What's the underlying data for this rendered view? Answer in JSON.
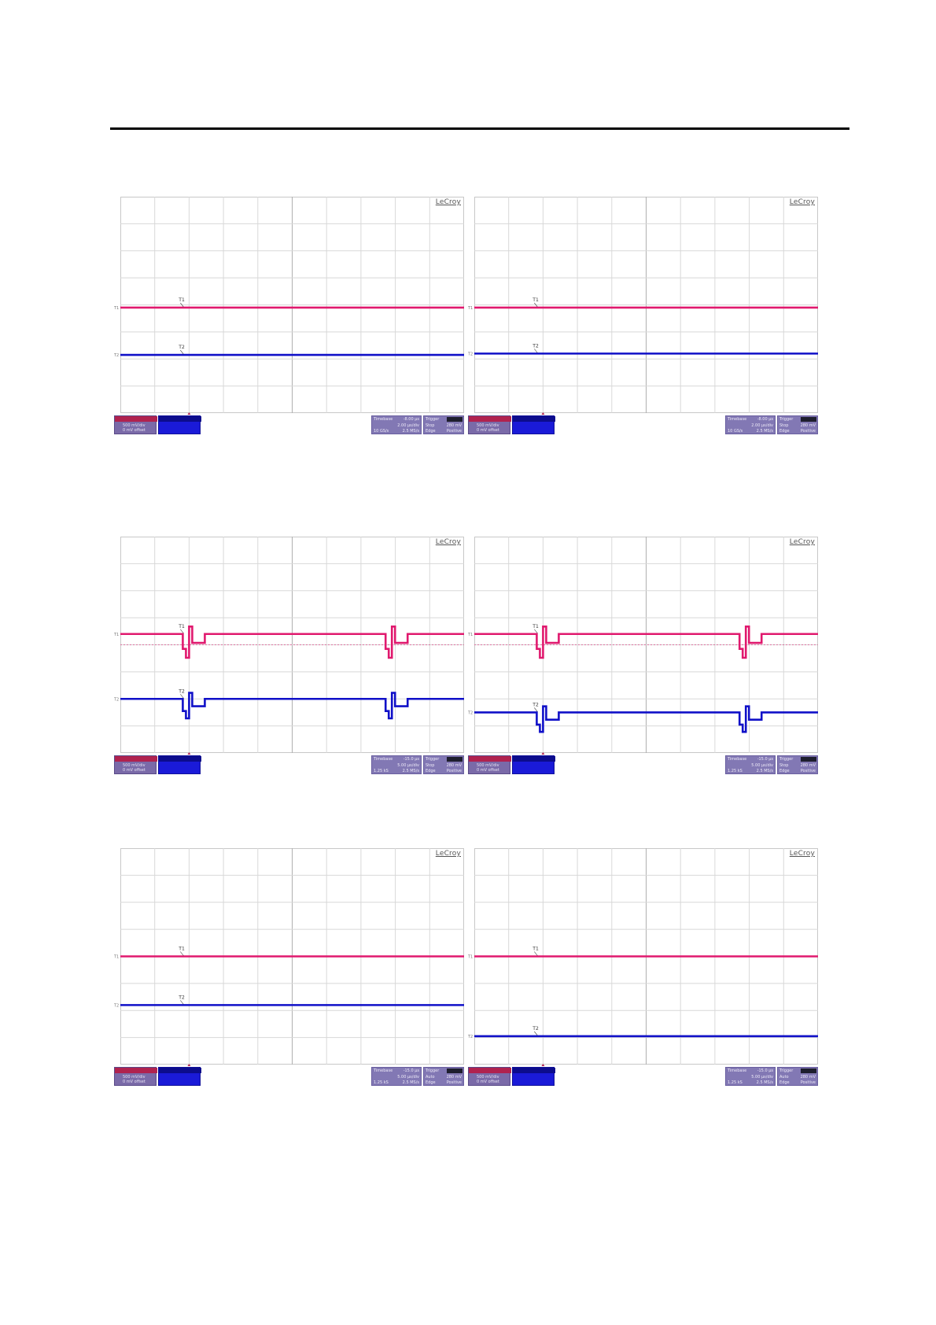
{
  "brand": "LeCroy",
  "colors": {
    "trace1": "#e0196e",
    "trace2": "#1010c8",
    "grid": "#d8d8d8",
    "grid_center": "#b0b0b0"
  },
  "marker_labels": {
    "t1": "T1",
    "t2": "T2"
  },
  "chart_data": [
    {
      "type": "line",
      "grid": {
        "x_divisions": 10,
        "y_divisions": 8
      },
      "series": [
        {
          "channel": "T1",
          "color": "#e0196e",
          "level_div": 3.9,
          "pulses": []
        },
        {
          "channel": "T2",
          "color": "#1010c8",
          "level_div": 2.15,
          "pulses": []
        }
      ],
      "ch1_lines": [
        "500 mV/div",
        "0 mV offset"
      ],
      "timebase": {
        "label": "Timebase",
        "value": "-8.00 µs",
        "per_div": "2.00 µs/div",
        "a": "10 GS/s",
        "b": "2.5 MS/s"
      },
      "trigger": {
        "label": "Trigger",
        "mode": "Stop",
        "level": "280 mV",
        "type": "Edge",
        "slope": "Positive"
      }
    },
    {
      "type": "line",
      "grid": {
        "x_divisions": 10,
        "y_divisions": 8
      },
      "series": [
        {
          "channel": "T1",
          "color": "#e0196e",
          "level_div": 3.9,
          "pulses": []
        },
        {
          "channel": "T2",
          "color": "#1010c8",
          "level_div": 2.2,
          "pulses": []
        }
      ],
      "ch1_lines": [
        "500 mV/div",
        "0 mV offset"
      ],
      "timebase": {
        "label": "Timebase",
        "value": "-8.00 µs",
        "per_div": "2.00 µs/div",
        "a": "10 GS/s",
        "b": "2.5 MS/s"
      },
      "trigger": {
        "label": "Trigger",
        "mode": "Stop",
        "level": "280 mV",
        "type": "Edge",
        "slope": "Positive"
      }
    },
    {
      "type": "line",
      "grid": {
        "x_divisions": 10,
        "y_divisions": 8
      },
      "series": [
        {
          "channel": "T1",
          "color": "#e0196e",
          "level_div": 4.4,
          "pulses": [
            2.0,
            7.9
          ]
        },
        {
          "channel": "T2",
          "color": "#1010c8",
          "level_div": 2.0,
          "pulses": [
            2.0,
            7.9
          ]
        }
      ],
      "ref_line_div": 4.0,
      "ch1_lines": [
        "500 mV/div",
        "0 mV offset"
      ],
      "timebase": {
        "label": "Timebase",
        "value": "-15.0 µs",
        "per_div": "5.00 µs/div",
        "a": "1.25 kS",
        "b": "2.5 MS/s"
      },
      "trigger": {
        "label": "Trigger",
        "mode": "Stop",
        "level": "280 mV",
        "type": "Edge",
        "slope": "Positive"
      }
    },
    {
      "type": "line",
      "grid": {
        "x_divisions": 10,
        "y_divisions": 8
      },
      "series": [
        {
          "channel": "T1",
          "color": "#e0196e",
          "level_div": 4.4,
          "pulses": [
            2.0,
            7.9
          ]
        },
        {
          "channel": "T2",
          "color": "#1010c8",
          "level_div": 1.5,
          "pulses": [
            2.0,
            7.9
          ]
        }
      ],
      "ref_line_div": 4.0,
      "ch1_lines": [
        "500 mV/div",
        "0 mV offset"
      ],
      "timebase": {
        "label": "Timebase",
        "value": "-15.0 µs",
        "per_div": "5.00 µs/div",
        "a": "1.25 kS",
        "b": "2.5 MS/s"
      },
      "trigger": {
        "label": "Trigger",
        "mode": "Stop",
        "level": "280 mV",
        "type": "Edge",
        "slope": "Positive"
      }
    },
    {
      "type": "line",
      "grid": {
        "x_divisions": 10,
        "y_divisions": 8
      },
      "series": [
        {
          "channel": "T1",
          "color": "#e0196e",
          "level_div": 4.0,
          "pulses": []
        },
        {
          "channel": "T2",
          "color": "#1010c8",
          "level_div": 2.2,
          "pulses": []
        }
      ],
      "ch1_lines": [
        "500 mV/div",
        "0 mV offset"
      ],
      "timebase": {
        "label": "Timebase",
        "value": "-15.0 µs",
        "per_div": "5.00 µs/div",
        "a": "1.25 kS",
        "b": "2.5 MS/s"
      },
      "trigger": {
        "label": "Trigger",
        "mode": "Auto",
        "level": "280 mV",
        "type": "Edge",
        "slope": "Positive"
      }
    },
    {
      "type": "line",
      "grid": {
        "x_divisions": 10,
        "y_divisions": 8
      },
      "series": [
        {
          "channel": "T1",
          "color": "#e0196e",
          "level_div": 4.0,
          "pulses": []
        },
        {
          "channel": "T2",
          "color": "#1010c8",
          "level_div": 1.05,
          "pulses": []
        }
      ],
      "ch1_lines": [
        "500 mV/div",
        "0 mV offset"
      ],
      "timebase": {
        "label": "Timebase",
        "value": "-15.0 µs",
        "per_div": "5.00 µs/div",
        "a": "1.25 kS",
        "b": "2.5 MS/s"
      },
      "trigger": {
        "label": "Trigger",
        "mode": "Auto",
        "level": "280 mV",
        "type": "Edge",
        "slope": "Positive"
      }
    }
  ]
}
